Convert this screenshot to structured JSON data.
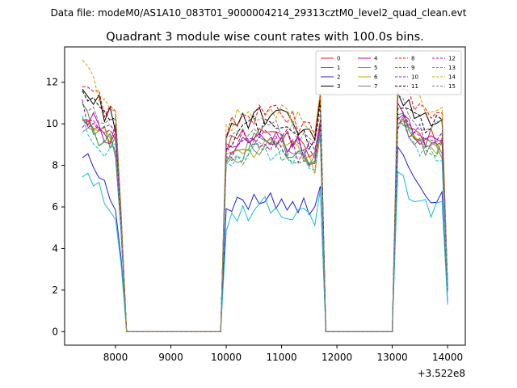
{
  "chart_data": {
    "type": "line",
    "suptitle": "Data file: modeM0/AS1A10_083T01_9000004214_29313cztM0_level2_quad_clean.evt",
    "title": "Quadrant 3 module wise count rates with 100.0s bins.",
    "xlabel": "",
    "ylabel": "",
    "x_offset_label": "+3.522e8",
    "xlim": [
      7080,
      14320
    ],
    "ylim": [
      -0.65,
      13.7
    ],
    "xticks": [
      8000,
      9000,
      10000,
      11000,
      12000,
      13000,
      14000
    ],
    "yticks": [
      0,
      2,
      4,
      6,
      8,
      10,
      12
    ],
    "x_start": 7400,
    "x_step": 100,
    "segments": [
      {
        "start": 7400,
        "end": 8200
      },
      {
        "start": 9900,
        "end": 11700
      },
      {
        "start": 11800,
        "end": 12900
      },
      {
        "start": 13000,
        "end": 14000
      }
    ],
    "legend": {
      "location": "top-right",
      "columns": 4
    },
    "series": [
      {
        "name": "0",
        "color": "#d62728",
        "style": "solid",
        "level": 9.4,
        "peak": 10.8
      },
      {
        "name": "1",
        "color": "#2ca02c",
        "style": "solid",
        "level": 9.0,
        "peak": 10.5
      },
      {
        "name": "2",
        "color": "#1f1fe0",
        "style": "solid",
        "level": 6.4,
        "peak": 8.9
      },
      {
        "name": "3",
        "color": "#000000",
        "style": "solid",
        "level": 10.2,
        "peak": 11.6
      },
      {
        "name": "4",
        "color": "#c000c0",
        "style": "solid",
        "level": 9.2,
        "peak": 10.4
      },
      {
        "name": "5",
        "color": "#17becf",
        "style": "solid",
        "level": 5.9,
        "peak": 7.5
      },
      {
        "name": "6",
        "color": "#c8a200",
        "style": "solid",
        "level": 8.9,
        "peak": 10.0
      },
      {
        "name": "7",
        "color": "#7f7f7f",
        "style": "solid",
        "level": 8.8,
        "peak": 10.0
      },
      {
        "name": "8",
        "color": "#ff0000",
        "style": "dashed",
        "level": 10.4,
        "peak": 12.0
      },
      {
        "name": "9",
        "color": "#2ca02c",
        "style": "dashed",
        "level": 8.7,
        "peak": 10.2
      },
      {
        "name": "10",
        "color": "#9400d3",
        "style": "dashed",
        "level": 9.3,
        "peak": 10.6
      },
      {
        "name": "11",
        "color": "#000000",
        "style": "dashed",
        "level": 9.9,
        "peak": 11.2
      },
      {
        "name": "12",
        "color": "#c000c0",
        "style": "dashed",
        "level": 9.0,
        "peak": 10.2
      },
      {
        "name": "13",
        "color": "#17becf",
        "style": "dashed",
        "level": 8.6,
        "peak": 9.8
      },
      {
        "name": "14",
        "color": "#c8a200",
        "style": "dashed",
        "level": 10.6,
        "peak": 12.7
      },
      {
        "name": "15",
        "color": "#7f7f7f",
        "style": "dashed",
        "level": 9.8,
        "peak": 11.0
      }
    ]
  }
}
